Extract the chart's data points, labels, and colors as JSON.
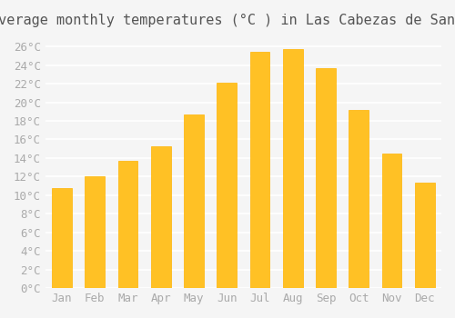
{
  "title": "Average monthly temperatures (°C ) in Las Cabezas de San Juan",
  "months": [
    "Jan",
    "Feb",
    "Mar",
    "Apr",
    "May",
    "Jun",
    "Jul",
    "Aug",
    "Sep",
    "Oct",
    "Nov",
    "Dec"
  ],
  "values": [
    10.8,
    12.0,
    13.7,
    15.3,
    18.7,
    22.1,
    25.4,
    25.7,
    23.7,
    19.2,
    14.5,
    11.4
  ],
  "bar_color": "#FFC125",
  "bar_edge_color": "#FFB300",
  "background_color": "#F5F5F5",
  "grid_color": "#FFFFFF",
  "tick_label_color": "#AAAAAA",
  "title_color": "#555555",
  "ylim": [
    0,
    27
  ],
  "ytick_step": 2,
  "title_fontsize": 11,
  "tick_fontsize": 9
}
